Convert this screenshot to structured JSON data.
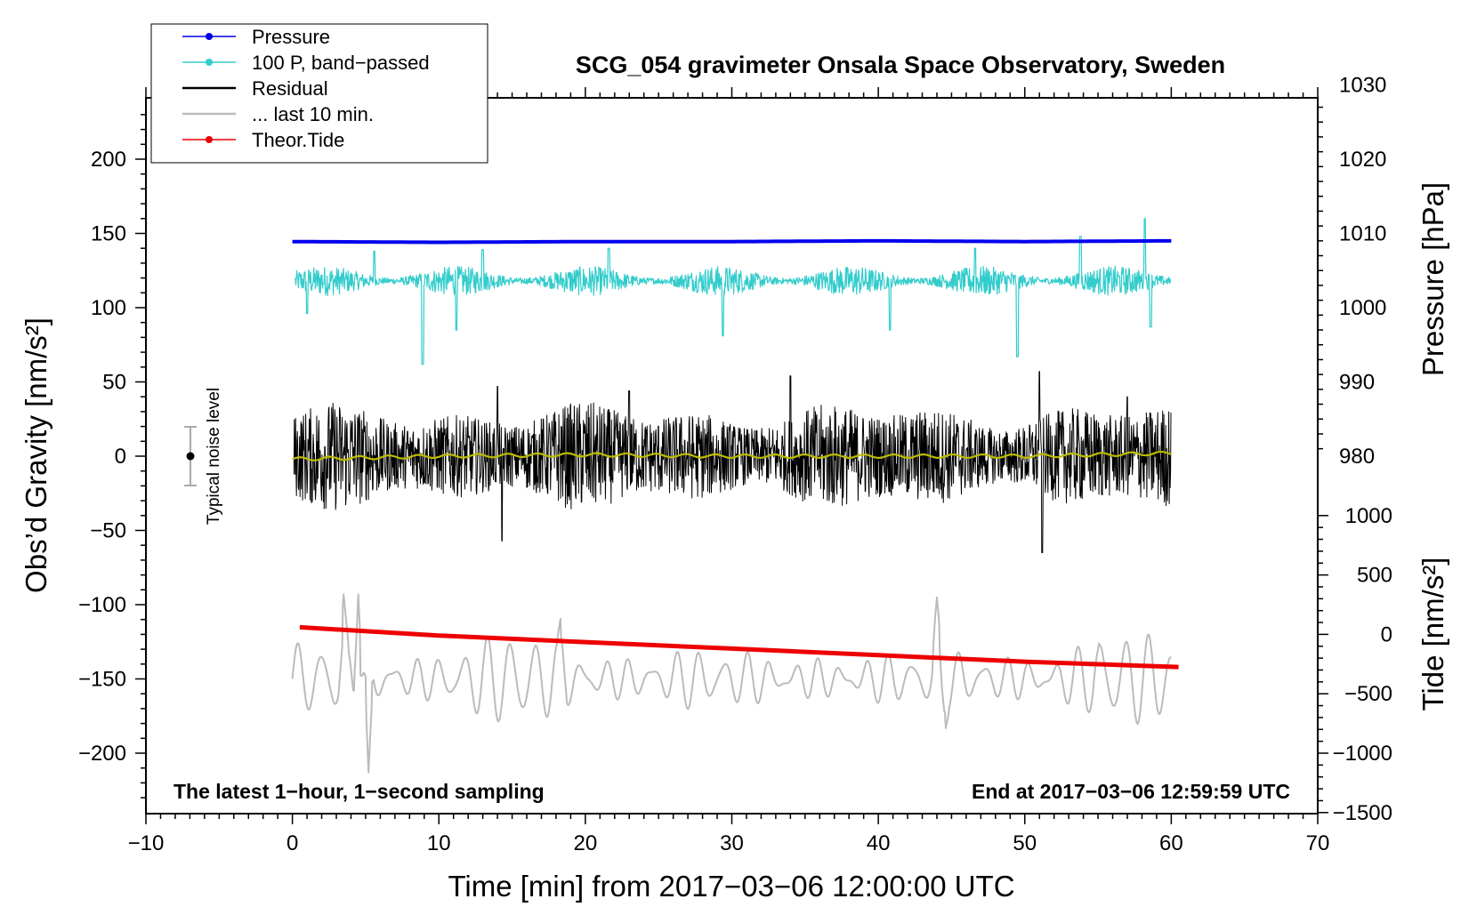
{
  "chart_data": {
    "type": "line",
    "title": "SCG_054 gravimeter Onsala Space Observatory, Sweden",
    "xlabel": "Time [min] from 2017−03−06 12:00:00 UTC",
    "ylabel_left": "Obs’d Gravity [nm/s²]",
    "ylabel_right_top": "Pressure [hPa]",
    "ylabel_right_bottom": "Tide [nm/s²]",
    "xlim": [
      -10,
      70
    ],
    "ylim_left": [
      -240,
      240
    ],
    "x_ticks": [
      -10,
      0,
      10,
      20,
      30,
      40,
      50,
      60,
      70
    ],
    "x_tick_labels": [
      "−10",
      "0",
      "10",
      "20",
      "30",
      "40",
      "50",
      "60",
      "70"
    ],
    "y_ticks_left": [
      200,
      150,
      100,
      50,
      0,
      -50,
      -100,
      -150,
      -200
    ],
    "y_tick_labels_left": [
      "200",
      "150",
      "100",
      "50",
      "0",
      "−50",
      "−100",
      "−150",
      "−200"
    ],
    "pressure_axis": {
      "ticks": [
        1030,
        1020,
        1010,
        1000,
        990,
        980
      ],
      "tick_labels": [
        "1030",
        "1020",
        "1010",
        "1000",
        "990",
        "980"
      ],
      "maps_1010_to_gravity": 150,
      "hpa_per_gravity_unit": 0.2
    },
    "tide_axis": {
      "ticks": [
        1000,
        500,
        0,
        -500,
        -1000,
        -1500
      ],
      "tick_labels": [
        "1000",
        "500",
        "0",
        "−500",
        "−1000",
        "−1500"
      ],
      "maps_0_to_gravity": -120,
      "tide_per_gravity_unit": 12.5
    },
    "legend": {
      "placement": "top-left",
      "entries": [
        {
          "label": "Pressure",
          "color": "#0000ee",
          "marker": true
        },
        {
          "label": "100 P, band−passed",
          "color": "#33cccc",
          "marker": true
        },
        {
          "label": "Residual",
          "color": "#000000",
          "marker": false
        },
        {
          "label": "... last 10 min.",
          "color": "#bbbbbb",
          "marker": false
        },
        {
          "label": "Theor.Tide",
          "color": "#ee0000",
          "marker": true
        }
      ]
    },
    "noise_bar": {
      "x": -7,
      "center": 0,
      "half_range": 20,
      "label": "Typical noise level"
    },
    "annotations": {
      "bottom_left": "The latest 1−hour, 1−second sampling",
      "bottom_right": "End at 2017−03−06 12:59:59 UTC"
    },
    "series": [
      {
        "name": "Pressure",
        "unit": "hPa",
        "color": "#0000ee",
        "x": [
          0,
          10,
          20,
          30,
          40,
          50,
          60
        ],
        "values": [
          1008.9,
          1008.8,
          1008.9,
          1008.9,
          1009.0,
          1008.9,
          1009.0
        ]
      },
      {
        "name": "100 P, band-passed",
        "unit": "nm/s2 (plotted)",
        "color": "#33cccc",
        "center": 118,
        "typical_amplitude": 10,
        "spikes": [
          [
            1,
            96
          ],
          [
            5.6,
            138
          ],
          [
            8.9,
            62
          ],
          [
            11.2,
            85
          ],
          [
            13,
            139
          ],
          [
            21.6,
            140
          ],
          [
            29.4,
            81
          ],
          [
            40.8,
            85
          ],
          [
            46.6,
            140
          ],
          [
            49.5,
            67
          ],
          [
            53.8,
            148
          ],
          [
            58.2,
            160
          ],
          [
            58.6,
            87
          ]
        ]
      },
      {
        "name": "Residual",
        "unit": "nm/s2",
        "color": "#000000",
        "center": 0,
        "typical_amplitude": 22,
        "extremes": [
          [
            14,
            47
          ],
          [
            14.3,
            -57
          ],
          [
            23,
            44
          ],
          [
            34,
            54
          ],
          [
            51,
            57
          ],
          [
            51.2,
            -65
          ],
          [
            57,
            40
          ],
          [
            61,
            -35
          ]
        ]
      },
      {
        "name": "Residual smoothed",
        "unit": "nm/s2",
        "color": "#bbbb00",
        "x": [
          0,
          10,
          20,
          30,
          40,
          50,
          60
        ],
        "values": [
          -2,
          0,
          1,
          0,
          0,
          0,
          2
        ]
      },
      {
        "name": "... last 10 min.",
        "unit": "nm/s2 (offset)",
        "color": "#bbbbbb",
        "center": -150,
        "typical_amplitude": 22,
        "extremes": [
          [
            3.5,
            -93
          ],
          [
            4.5,
            -93
          ],
          [
            5.2,
            -213
          ],
          [
            18.4,
            -100
          ],
          [
            44,
            -95
          ],
          [
            44.5,
            -190
          ],
          [
            55,
            -125
          ]
        ]
      },
      {
        "name": "Theor.Tide",
        "unit": "nm/s2",
        "color": "#ee0000",
        "x": [
          0.5,
          10,
          20,
          30,
          40,
          50,
          60.5
        ],
        "values": [
          60,
          -10,
          -65,
          -120,
          -175,
          -230,
          -275
        ]
      }
    ]
  }
}
